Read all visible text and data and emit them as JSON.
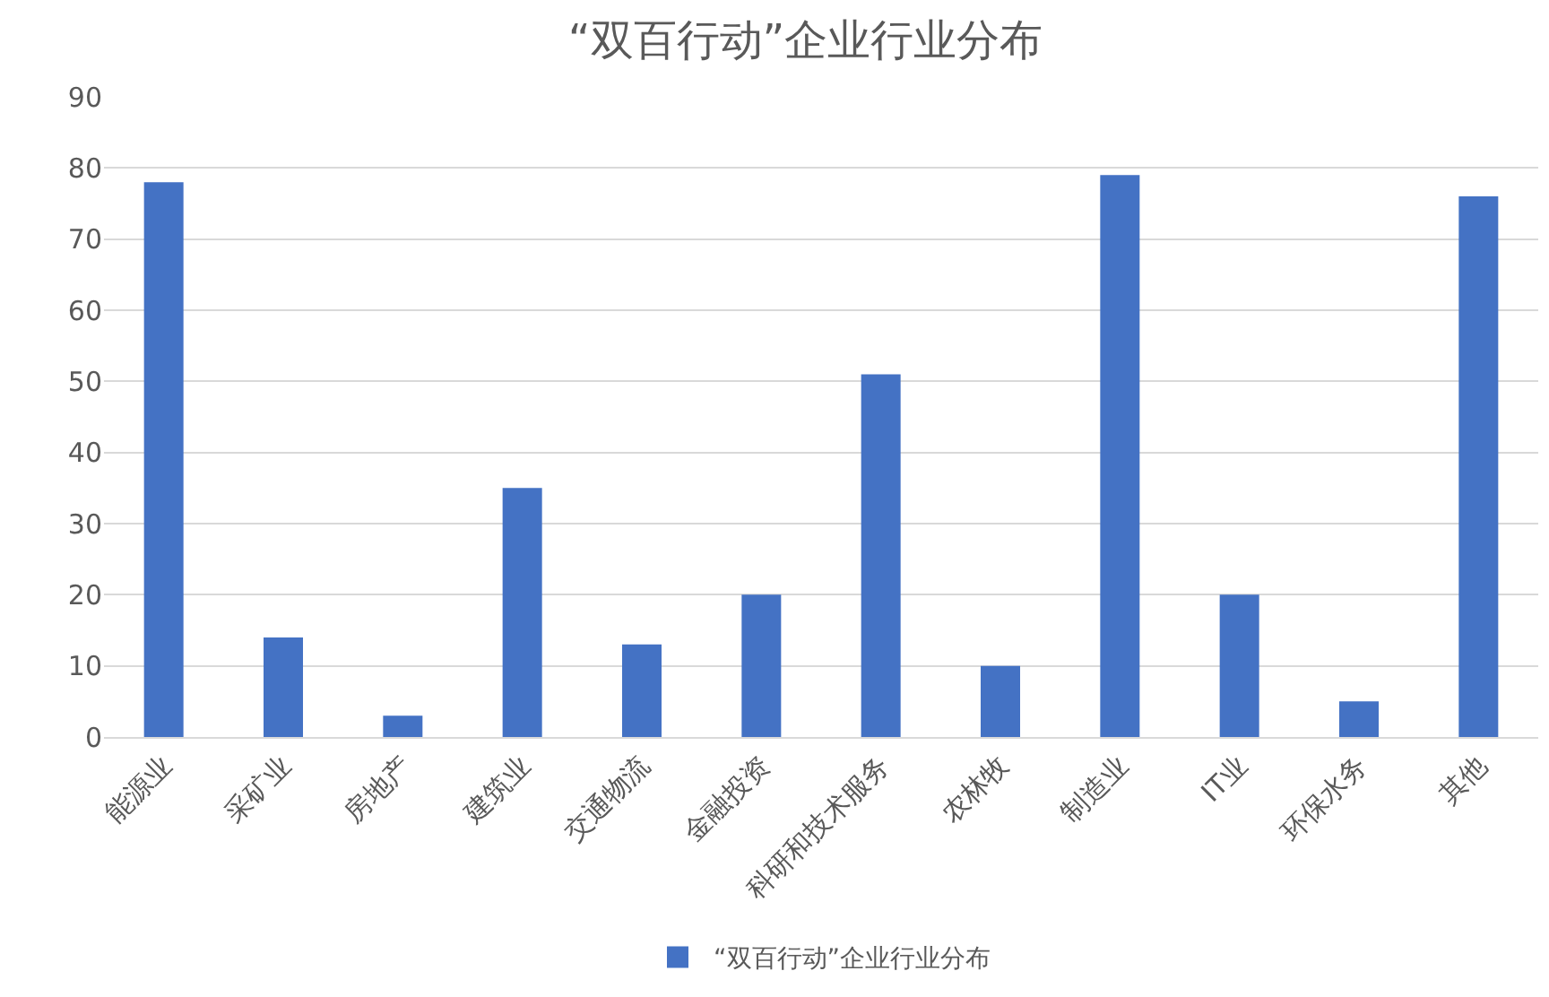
{
  "chart_data": {
    "type": "bar",
    "title": "“双百行动”企业行业分布",
    "categories": [
      "能源业",
      "采矿业",
      "房地产",
      "建筑业",
      "交通物流",
      "金融投资",
      "科研和技术服务",
      "农林牧",
      "制造业",
      "IT业",
      "环保水务",
      "其他"
    ],
    "series": [
      {
        "name": "“双百行动”企业行业分布",
        "color": "#4472c4",
        "values": [
          78,
          14,
          3,
          35,
          13,
          20,
          51,
          10,
          79,
          20,
          5,
          76
        ]
      }
    ],
    "ylim": [
      0,
      90
    ],
    "yticks": [
      0,
      10,
      20,
      30,
      40,
      50,
      60,
      70,
      80,
      90
    ],
    "grid": "y",
    "legend": "bottom"
  }
}
